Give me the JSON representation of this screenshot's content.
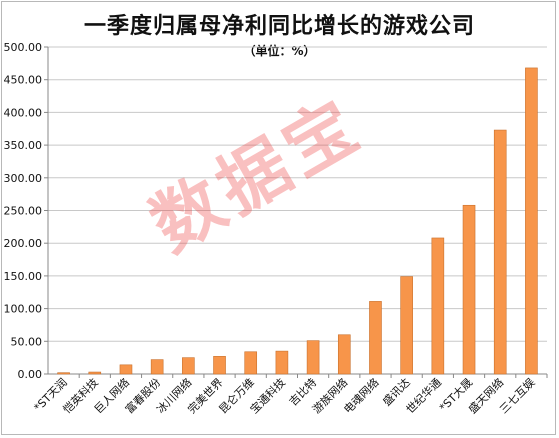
{
  "chart_data": {
    "type": "bar",
    "title": "一季度归属母净利同比增长的游戏公司",
    "subtitle": "（单位：%）",
    "categories": [
      "*ST天润",
      "恺英科技",
      "巨人网络",
      "富春股份",
      "冰川网络",
      "完美世界",
      "昆仑万维",
      "宝通科技",
      "吉比特",
      "游族网络",
      "电魂网络",
      "盛讯达",
      "世纪华通",
      "*ST大晟",
      "盛天网络",
      "三七互娱"
    ],
    "values": [
      2,
      3,
      14,
      22,
      25,
      27,
      34,
      35,
      51,
      60,
      111,
      149,
      208,
      258,
      373,
      468
    ],
    "yticks": [
      "0.00",
      "50.00",
      "100.00",
      "150.00",
      "200.00",
      "250.00",
      "300.00",
      "350.00",
      "400.00",
      "450.00",
      "500.00"
    ],
    "ylim": [
      0,
      500
    ],
    "grid": true,
    "colors": {
      "bar": "#F7954A",
      "bar_edge": "#c9702c",
      "grid": "#c8c8c8",
      "axis": "#888888"
    }
  },
  "watermark": "数据宝"
}
